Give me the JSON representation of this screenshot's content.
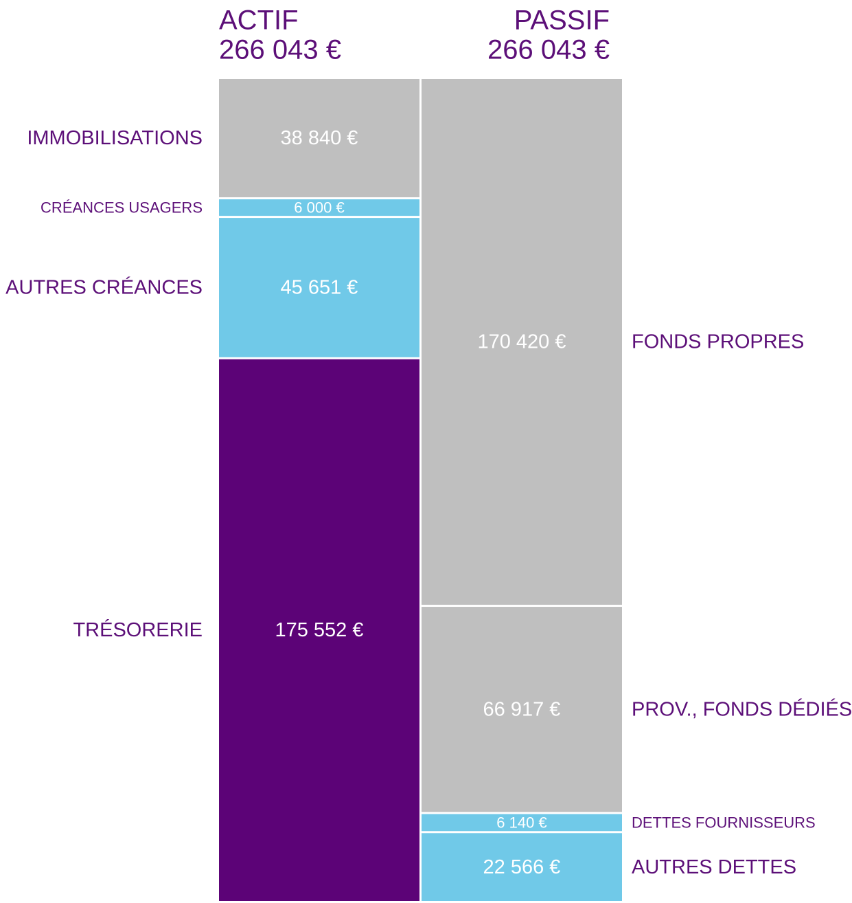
{
  "chart_data": {
    "type": "balance",
    "columns": [
      {
        "name": "ACTIF",
        "total": 266043,
        "total_label": "266 043 €",
        "categories": [
          "IMMOBILISATIONS",
          "CRÉANCES USAGERS",
          "AUTRES CRÉANCES",
          "TRÉSORERIE"
        ],
        "values": [
          38840,
          6000,
          45651,
          175552
        ],
        "value_labels": [
          "38 840 €",
          "6 000 €",
          "45 651 €",
          "175 552 €"
        ],
        "colors": [
          "#bfbfbf",
          "#70c9e8",
          "#70c9e8",
          "#5c0377"
        ]
      },
      {
        "name": "PASSIF",
        "total": 266043,
        "total_label": "266 043 €",
        "categories": [
          "FONDS PROPRES",
          "PROV., FONDS DÉDIÉS",
          "DETTES FOURNISSEURS",
          "AUTRES DETTES"
        ],
        "values": [
          170420,
          66917,
          6140,
          22566
        ],
        "value_labels": [
          "170 420 €",
          "66 917 €",
          "6 140 €",
          "22 566 €"
        ],
        "colors": [
          "#bfbfbf",
          "#bfbfbf",
          "#70c9e8",
          "#70c9e8"
        ]
      }
    ]
  }
}
